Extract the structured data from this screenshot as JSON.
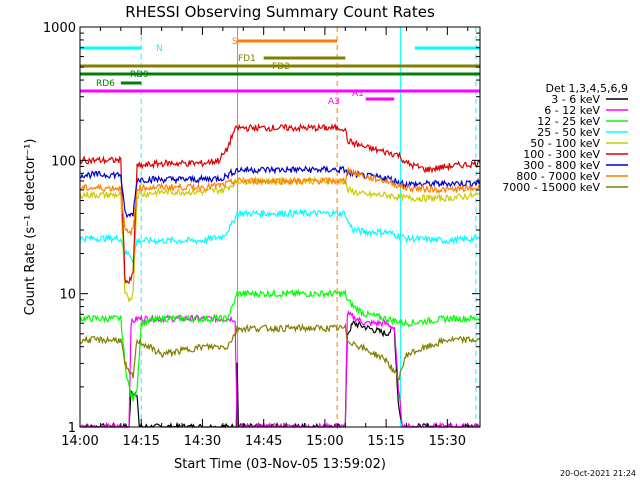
{
  "chart_data": {
    "type": "line",
    "title": "RHESSI Observing Summary Count Rates",
    "xlabel": "Start Time (03-Nov-05 13:59:02)",
    "ylabel": "Count Rate (s⁻¹ detector⁻¹)",
    "yscale": "log",
    "ylim": [
      1,
      1000
    ],
    "xlim_minutes_after_14_00": [
      0,
      98
    ],
    "x_ticks": [
      {
        "label": "14:00",
        "minutes": 0
      },
      {
        "label": "14:15",
        "minutes": 15
      },
      {
        "label": "14:30",
        "minutes": 30
      },
      {
        "label": "14:45",
        "minutes": 45
      },
      {
        "label": "15:00",
        "minutes": 60
      },
      {
        "label": "15:15",
        "minutes": 75
      },
      {
        "label": "15:30",
        "minutes": 90
      }
    ],
    "y_ticks": [
      {
        "label": "1",
        "value": 1
      },
      {
        "label": "10",
        "value": 10
      },
      {
        "label": "100",
        "value": 100
      },
      {
        "label": "1000",
        "value": 1000
      }
    ],
    "legend_title": "Det 1,3,4,5,6,9",
    "series": [
      {
        "name": "3 - 6 keV",
        "color": "#000000",
        "points": [
          [
            0,
            1
          ],
          [
            12,
            1
          ],
          [
            12.5,
            1.8
          ],
          [
            14,
            1.8
          ],
          [
            14.5,
            1
          ],
          [
            38.3,
            1
          ],
          [
            38.5,
            3
          ],
          [
            38.8,
            1
          ],
          [
            65,
            1
          ],
          [
            65.5,
            5
          ],
          [
            67,
            6
          ],
          [
            75,
            5
          ],
          [
            77,
            5.5
          ],
          [
            78,
            1.5
          ],
          [
            79,
            1
          ],
          [
            98,
            1
          ]
        ]
      },
      {
        "name": "6 - 12 keV",
        "color": "#ff00ff",
        "points": [
          [
            0,
            1
          ],
          [
            12,
            1
          ],
          [
            12.5,
            6
          ],
          [
            14,
            6.5
          ],
          [
            14.5,
            6.5
          ],
          [
            38,
            6.5
          ],
          [
            38.5,
            1
          ],
          [
            65,
            1
          ],
          [
            65.5,
            7
          ],
          [
            70,
            6
          ],
          [
            75,
            6
          ],
          [
            77,
            5.5
          ],
          [
            78,
            2
          ],
          [
            79,
            1
          ],
          [
            98,
            1
          ]
        ]
      },
      {
        "name": "12 - 25 keV",
        "color": "#00ff00",
        "points": [
          [
            0,
            6.5
          ],
          [
            10,
            6.5
          ],
          [
            11,
            3
          ],
          [
            12,
            2
          ],
          [
            13,
            1.6
          ],
          [
            14,
            2
          ],
          [
            15,
            6
          ],
          [
            20,
            6.5
          ],
          [
            30,
            6.5
          ],
          [
            36,
            6.5
          ],
          [
            37,
            7.5
          ],
          [
            38,
            9
          ],
          [
            38.5,
            10
          ],
          [
            65,
            10
          ],
          [
            65.5,
            9
          ],
          [
            67,
            8
          ],
          [
            70,
            7
          ],
          [
            75,
            6.5
          ],
          [
            80,
            6
          ],
          [
            90,
            6.5
          ],
          [
            98,
            6.5
          ]
        ]
      },
      {
        "name": "25 - 50 keV",
        "color": "#00ffff",
        "points": [
          [
            0,
            26
          ],
          [
            10,
            26
          ],
          [
            11,
            20
          ],
          [
            12,
            20
          ],
          [
            13,
            18
          ],
          [
            14,
            25
          ],
          [
            20,
            25
          ],
          [
            30,
            25
          ],
          [
            35,
            27
          ],
          [
            37,
            32
          ],
          [
            38.5,
            40
          ],
          [
            65,
            40
          ],
          [
            65.5,
            35
          ],
          [
            67,
            30
          ],
          [
            70,
            29
          ],
          [
            75,
            29
          ],
          [
            80,
            26
          ],
          [
            90,
            25
          ],
          [
            98,
            26
          ]
        ]
      },
      {
        "name": "50 - 100 keV",
        "color": "#cccc00",
        "points": [
          [
            0,
            55
          ],
          [
            10,
            55
          ],
          [
            11,
            10
          ],
          [
            12,
            9
          ],
          [
            13,
            10
          ],
          [
            14,
            55
          ],
          [
            20,
            58
          ],
          [
            30,
            58
          ],
          [
            35,
            60
          ],
          [
            37,
            65
          ],
          [
            38.5,
            70
          ],
          [
            65,
            70
          ],
          [
            65.5,
            60
          ],
          [
            70,
            55
          ],
          [
            75,
            55
          ],
          [
            80,
            52
          ],
          [
            90,
            52
          ],
          [
            98,
            55
          ]
        ]
      },
      {
        "name": "100 - 300 keV",
        "color": "#dd0000",
        "points": [
          [
            0,
            100
          ],
          [
            10,
            100
          ],
          [
            11,
            13
          ],
          [
            12,
            12
          ],
          [
            13,
            14
          ],
          [
            14,
            90
          ],
          [
            20,
            95
          ],
          [
            30,
            95
          ],
          [
            34,
            100
          ],
          [
            36,
            120
          ],
          [
            37.5,
            160
          ],
          [
            38.5,
            175
          ],
          [
            65,
            175
          ],
          [
            65.5,
            140
          ],
          [
            70,
            125
          ],
          [
            75,
            115
          ],
          [
            78,
            110
          ],
          [
            80,
            95
          ],
          [
            85,
            85
          ],
          [
            90,
            90
          ],
          [
            98,
            95
          ]
        ]
      },
      {
        "name": "300 - 800 keV",
        "color": "#0000cc",
        "points": [
          [
            0,
            78
          ],
          [
            10,
            78
          ],
          [
            11,
            40
          ],
          [
            12,
            38
          ],
          [
            13,
            40
          ],
          [
            14,
            72
          ],
          [
            20,
            72
          ],
          [
            30,
            72
          ],
          [
            35,
            74
          ],
          [
            37,
            80
          ],
          [
            38.5,
            85
          ],
          [
            65,
            85
          ],
          [
            65.5,
            80
          ],
          [
            70,
            76
          ],
          [
            75,
            74
          ],
          [
            80,
            66
          ],
          [
            90,
            67
          ],
          [
            98,
            68
          ]
        ]
      },
      {
        "name": "800 - 7000 keV",
        "color": "#ff7f00",
        "points": [
          [
            0,
            62
          ],
          [
            10,
            62
          ],
          [
            11,
            30
          ],
          [
            12,
            28
          ],
          [
            13,
            30
          ],
          [
            14,
            62
          ],
          [
            20,
            63
          ],
          [
            30,
            63
          ],
          [
            35,
            65
          ],
          [
            37,
            68
          ],
          [
            38.5,
            70
          ],
          [
            65,
            70
          ],
          [
            65.5,
            85
          ],
          [
            70,
            75
          ],
          [
            75,
            70
          ],
          [
            80,
            62
          ],
          [
            90,
            60
          ],
          [
            98,
            62
          ]
        ]
      },
      {
        "name": "7000 - 15000 keV",
        "color": "#808000",
        "points": [
          [
            0,
            4.5
          ],
          [
            10,
            4.5
          ],
          [
            11,
            3
          ],
          [
            12,
            2.5
          ],
          [
            13,
            2.4
          ],
          [
            14,
            4.5
          ],
          [
            20,
            3.5
          ],
          [
            30,
            4
          ],
          [
            36,
            4
          ],
          [
            38,
            5
          ],
          [
            38.5,
            5.5
          ],
          [
            65,
            5.5
          ],
          [
            65.5,
            4.5
          ],
          [
            70,
            3.8
          ],
          [
            75,
            3.2
          ],
          [
            78,
            2.3
          ],
          [
            80,
            3.5
          ],
          [
            90,
            4.5
          ],
          [
            98,
            4.5
          ]
        ]
      }
    ],
    "annotations": [
      {
        "label": "N",
        "color": "#00ffff",
        "intervals": [
          [
            0,
            15
          ],
          [
            82,
            98
          ]
        ]
      },
      {
        "label": "S",
        "color": "#ff7f00",
        "intervals": [
          [
            38.5,
            63
          ]
        ]
      },
      {
        "label": "FD1",
        "color": "#808000",
        "intervals": [
          [
            45,
            65
          ]
        ]
      },
      {
        "label": "FD2",
        "color": "#808000",
        "intervals": [
          [
            0,
            98
          ]
        ]
      },
      {
        "label": "RD9",
        "color": "#008000",
        "intervals": [
          [
            0,
            98
          ]
        ]
      },
      {
        "label": "RD6",
        "color": "#008000",
        "intervals": [
          [
            10,
            15
          ]
        ]
      },
      {
        "label": "A1",
        "color": "#ff00ff",
        "intervals": [
          [
            0,
            98
          ]
        ]
      },
      {
        "label": "A3",
        "color": "#ff00ff",
        "intervals": [
          [
            70,
            77
          ]
        ]
      }
    ],
    "vertical_markers": [
      {
        "color": "#00ffff",
        "style": "solid",
        "minutes": 0
      },
      {
        "color": "#00ffff",
        "style": "dashed",
        "minutes": 15
      },
      {
        "color": "#ff7f00",
        "style": "solid",
        "minutes": 38.6
      },
      {
        "color": "#ff7f00",
        "style": "dashed",
        "minutes": 63
      },
      {
        "color": "#00ffff",
        "style": "solid",
        "minutes": 78.5
      },
      {
        "color": "#00ffff",
        "style": "dashed",
        "minutes": 97
      }
    ]
  },
  "footer": {
    "timestamp": "20-Oct-2021 21:24"
  }
}
